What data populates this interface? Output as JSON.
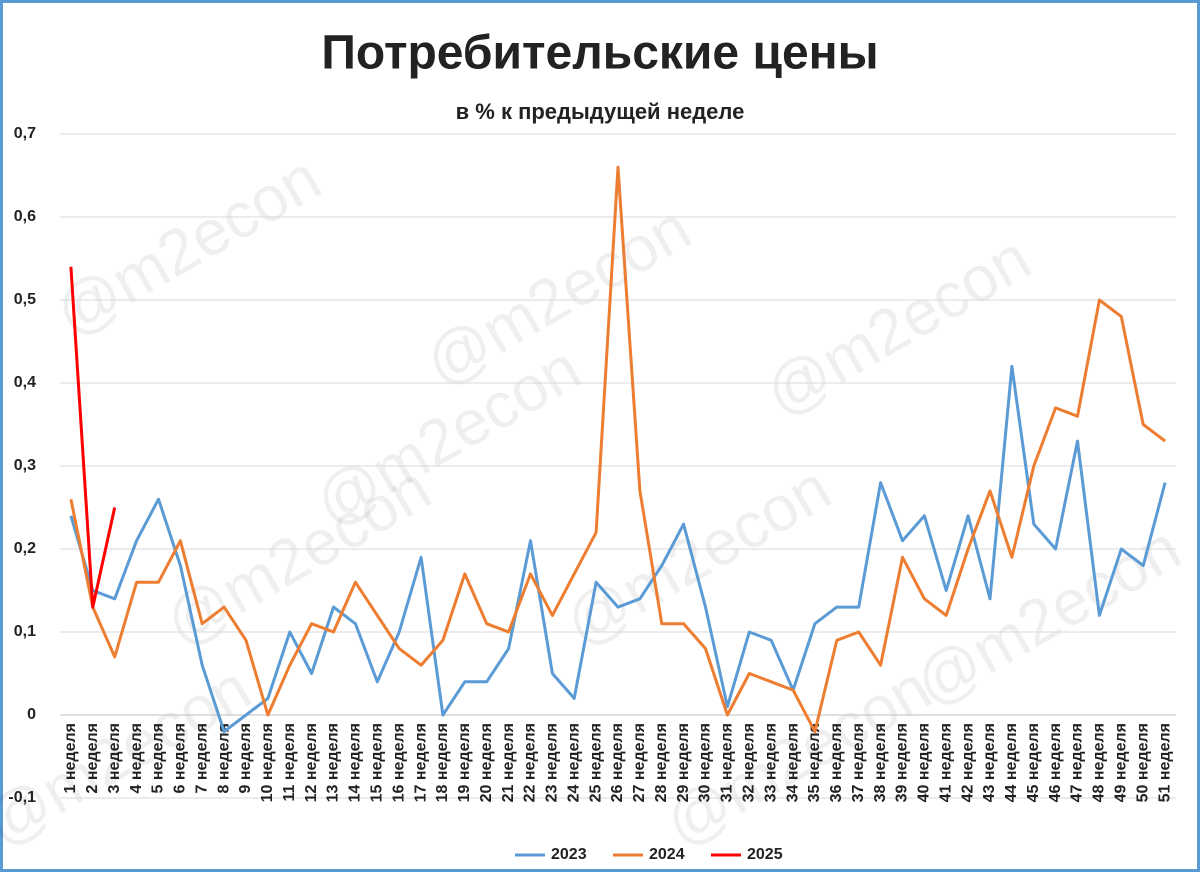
{
  "chart_data": {
    "type": "line",
    "title": "Потребительские цены",
    "subtitle": "в % к предыдущей неделе",
    "watermark": "@m2econ",
    "categories": [
      "1 неделя",
      "2 неделя",
      "3 неделя",
      "4 неделя",
      "5 неделя",
      "6 неделя",
      "7 неделя",
      "8 неделя",
      "9 неделя",
      "10 неделя",
      "11 неделя",
      "12 неделя",
      "13 неделя",
      "14 неделя",
      "15 неделя",
      "16 неделя",
      "17 неделя",
      "18 неделя",
      "19 неделя",
      "20 неделя",
      "21 неделя",
      "22 неделя",
      "23 неделя",
      "24 неделя",
      "25 неделя",
      "26 неделя",
      "27 неделя",
      "28 неделя",
      "29 неделя",
      "30 неделя",
      "31 неделя",
      "32 неделя",
      "33 неделя",
      "34 неделя",
      "35 неделя",
      "36 неделя",
      "37 неделя",
      "38 неделя",
      "39 неделя",
      "40 неделя",
      "41 неделя",
      "42 неделя",
      "43 неделя",
      "44 неделя",
      "45 неделя",
      "46 неделя",
      "47 неделя",
      "48 неделя",
      "49 неделя",
      "50 неделя",
      "51 неделя"
    ],
    "series": [
      {
        "name": "2023",
        "color": "#5b9bd5",
        "values": [
          0.24,
          0.15,
          0.14,
          0.21,
          0.26,
          0.18,
          0.06,
          -0.02,
          0.0,
          0.02,
          0.1,
          0.05,
          0.13,
          0.11,
          0.04,
          0.1,
          0.19,
          0.0,
          0.04,
          0.04,
          0.08,
          0.21,
          0.05,
          0.02,
          0.16,
          0.13,
          0.14,
          0.18,
          0.23,
          0.13,
          0.01,
          0.1,
          0.09,
          0.03,
          0.11,
          0.13,
          0.13,
          0.28,
          0.21,
          0.24,
          0.15,
          0.24,
          0.14,
          0.42,
          0.23,
          0.2,
          0.33,
          0.12,
          0.2,
          0.18,
          0.28
        ]
      },
      {
        "name": "2024",
        "color": "#ed7d31",
        "values": [
          0.26,
          0.13,
          0.07,
          0.16,
          0.16,
          0.21,
          0.11,
          0.13,
          0.09,
          0.0,
          0.06,
          0.11,
          0.1,
          0.16,
          0.12,
          0.08,
          0.06,
          0.09,
          0.17,
          0.11,
          0.1,
          0.17,
          0.12,
          0.17,
          0.22,
          0.66,
          0.27,
          0.11,
          0.11,
          0.08,
          0.0,
          0.05,
          0.04,
          0.03,
          -0.02,
          0.09,
          0.1,
          0.06,
          0.19,
          0.14,
          0.12,
          0.2,
          0.27,
          0.19,
          0.3,
          0.37,
          0.36,
          0.5,
          0.48,
          0.35,
          0.33
        ]
      },
      {
        "name": "2025",
        "color": "#ff0000",
        "values": [
          0.54,
          0.13,
          0.25,
          null,
          null,
          null,
          null,
          null,
          null,
          null,
          null,
          null,
          null,
          null,
          null,
          null,
          null,
          null,
          null,
          null,
          null,
          null,
          null,
          null,
          null,
          null,
          null,
          null,
          null,
          null,
          null,
          null,
          null,
          null,
          null,
          null,
          null,
          null,
          null,
          null,
          null,
          null,
          null,
          null,
          null,
          null,
          null,
          null,
          null,
          null,
          null
        ]
      }
    ],
    "ylim": [
      -0.1,
      0.7
    ],
    "yticks": [
      {
        "value": -0.1,
        "label": "-0,1"
      },
      0,
      {
        "value": 0.1,
        "label": "0,1"
      },
      {
        "value": 0.2,
        "label": "0,2"
      },
      {
        "value": 0.3,
        "label": "0,3"
      },
      {
        "value": 0.4,
        "label": "0,4"
      },
      {
        "value": 0.5,
        "label": "0,5"
      },
      {
        "value": 0.6,
        "label": "0,6"
      },
      {
        "value": 0.7,
        "label": "0,7"
      }
    ],
    "grid": true
  }
}
